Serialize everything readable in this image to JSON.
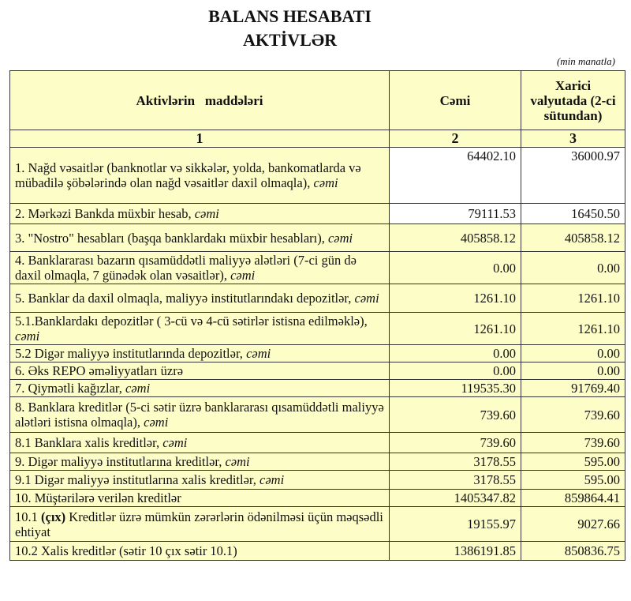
{
  "title": "BALANS HESABATI",
  "subtitle": "AKTİVLƏR",
  "unit": "(min manatla)",
  "headers": [
    "Aktivlərin   maddələri",
    "Cəmi",
    "Xarici valyutada (2-ci sütundan)"
  ],
  "column_numbers": [
    "1",
    "2",
    "3"
  ],
  "rows": [
    {
      "label": "1. Nağd vəsaitlər (banknotlar və sikkələr, yolda, bankomatlarda və mübadilə şöbələrində olan nağd vəsaitlər daxil olmaqla),",
      "suffix": "cəmi",
      "total": "64402.10",
      "foreign": "36000.97"
    },
    {
      "label": "2. Mərkəzi Bankda müxbir hesab,",
      "suffix": "cəmi",
      "total": "79111.53",
      "foreign": "16450.50"
    },
    {
      "label": "3. \"Nostro\" hesabları (başqa banklardakı müxbir hesabları),",
      "suffix": "cəmi",
      "total": "405858.12",
      "foreign": "405858.12"
    },
    {
      "label": "4. Banklararası bazarın qısamüddətli maliyyə alətləri (7-ci gün də daxil olmaqla, 7 günədək olan vəsaitlər),",
      "suffix": "cəmi",
      "total": "0.00",
      "foreign": "0.00"
    },
    {
      "label": "5. Banklar da daxil olmaqla, maliyyə institutlarındakı depozitlər,",
      "suffix": "cəmi",
      "total": "1261.10",
      "foreign": "1261.10"
    },
    {
      "label": "5.1.Banklardakı depozitlər ( 3-cü və 4-cü sətirlər istisna edilməklə),",
      "suffix": "cəmi",
      "total": "1261.10",
      "foreign": "1261.10"
    },
    {
      "label": "5.2 Digər maliyyə institutlarında depozitlər,",
      "suffix": "cəmi",
      "total": "0.00",
      "foreign": "0.00"
    },
    {
      "label": "6. Əks REPO əməliyyatları üzrə",
      "suffix": "",
      "total": "0.00",
      "foreign": "0.00"
    },
    {
      "label": "7. Qiymətli kağızlar,",
      "suffix": "cəmi",
      "total": "119535.30",
      "foreign": "91769.40"
    },
    {
      "label": "8. Banklara kreditlər (5-ci sətir üzrə banklararası qısamüddətli maliyyə alətləri istisna olmaqla),",
      "suffix": "cəmi",
      "total": "739.60",
      "foreign": "739.60"
    },
    {
      "label": "8.1 Banklara xalis kreditlər,",
      "suffix": "cəmi",
      "total": "739.60",
      "foreign": "739.60"
    },
    {
      "label": "9. Digər maliyyə institutlarına kreditlər,",
      "suffix": "cəmi",
      "total": "3178.55",
      "foreign": "595.00"
    },
    {
      "label": "9.1 Digər maliyyə institutlarına xalis kreditlər,",
      "suffix": "cəmi",
      "total": "3178.55",
      "foreign": "595.00"
    },
    {
      "label": "10. Müştərilərə verilən kreditlər",
      "suffix": "",
      "total": "1405347.82",
      "foreign": "859864.41"
    },
    {
      "label_bold": "(çıx)",
      "label_prefix": "10.1",
      "label": "Kreditlər üzrə mümkün zərərlərin ödənilməsi üçün məqsədli ehtiyat",
      "suffix": "",
      "total": "19155.97",
      "foreign": "9027.66"
    },
    {
      "label": "10.2 Xalis kreditlər (sətir 10 çıx sətir 10.1)",
      "suffix": "",
      "total": "1386191.85",
      "foreign": "850836.75"
    }
  ],
  "colors": {
    "cell_background": "#fdfdc8",
    "border": "#333333"
  }
}
